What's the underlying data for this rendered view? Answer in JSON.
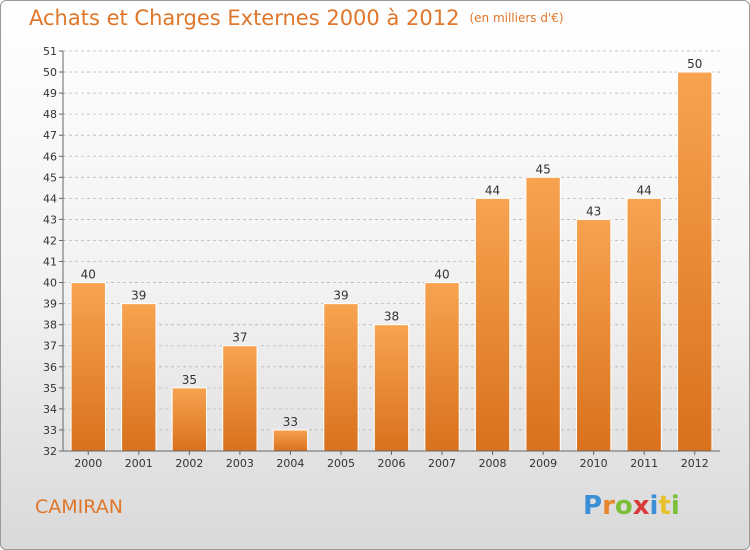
{
  "chart_data": {
    "type": "bar",
    "title": "Achats et Charges Externes 2000 à 2012",
    "unit_label": "(en milliers d'€)",
    "categories": [
      "2000",
      "2001",
      "2002",
      "2003",
      "2004",
      "2005",
      "2006",
      "2007",
      "2008",
      "2009",
      "2010",
      "2011",
      "2012"
    ],
    "values": [
      40,
      39,
      35,
      37,
      33,
      39,
      38,
      40,
      44,
      45,
      43,
      44,
      50
    ],
    "ylim": [
      32,
      51
    ],
    "yticks": [
      32,
      33,
      34,
      35,
      36,
      37,
      38,
      39,
      40,
      41,
      42,
      43,
      44,
      45,
      46,
      47,
      48,
      49,
      50,
      51
    ],
    "xlabel": "",
    "ylabel": "",
    "grid": true,
    "bar_color_top": "#f7a350",
    "bar_color_bottom": "#d9711d"
  },
  "footer": {
    "place": "CAMIRAN",
    "logo_letters": [
      "P",
      "r",
      "o",
      "x",
      "i",
      "t",
      "i"
    ],
    "logo_colors": [
      "#3a8fd6",
      "#e8862b",
      "#7bbf3a",
      "#d93a3a",
      "#3a8fd6",
      "#e8c22b",
      "#7bbf3a"
    ]
  }
}
